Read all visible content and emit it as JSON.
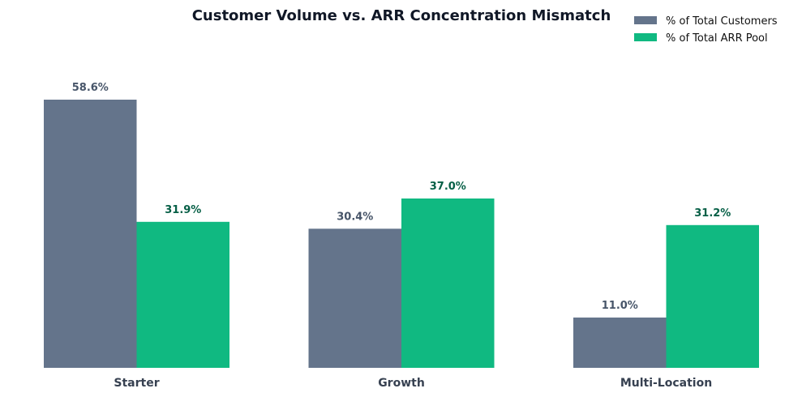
{
  "chart_data": {
    "type": "bar",
    "title": "Customer Volume vs. ARR Concentration Mismatch",
    "xlabel": "",
    "ylabel": "",
    "categories": [
      "Starter",
      "Growth",
      "Multi-Location"
    ],
    "series": [
      {
        "name": "% of Total Customers",
        "values": [
          58.6,
          30.4,
          11.0
        ],
        "labels": [
          "58.6%",
          "30.4%",
          "11.0%"
        ],
        "color": "#64748b",
        "label_color": "#475569"
      },
      {
        "name": "% of Total ARR Pool",
        "values": [
          31.9,
          37.0,
          31.2
        ],
        "labels": [
          "31.9%",
          "37.0%",
          "31.2%"
        ],
        "color": "#10b981",
        "label_color": "#065f46"
      }
    ],
    "ylim": [
      0,
      70
    ],
    "grid": false,
    "legend": "top-right"
  }
}
